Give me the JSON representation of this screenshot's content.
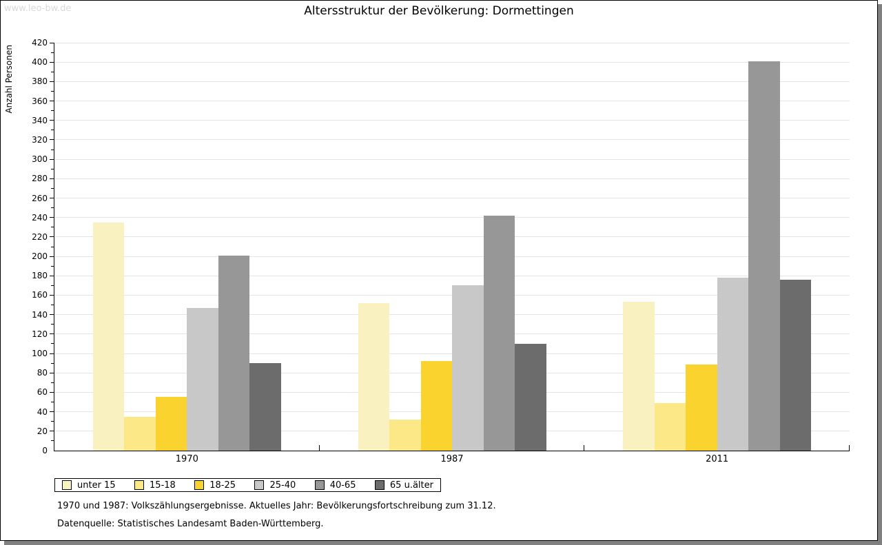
{
  "watermark": "www.leo-bw.de",
  "title": "Altersstruktur der Bevölkerung: Dormettingen",
  "chart_data": {
    "type": "bar",
    "title": "Altersstruktur der Bevölkerung: Dormettingen",
    "xlabel": "",
    "ylabel": "Anzahl Personen",
    "categories": [
      "1970",
      "1987",
      "2011"
    ],
    "series": [
      {
        "name": "unter 15",
        "color": "#FAF1C0",
        "values": [
          235,
          152,
          153
        ]
      },
      {
        "name": "15-18",
        "color": "#FCE886",
        "values": [
          35,
          32,
          49
        ]
      },
      {
        "name": "18-25",
        "color": "#FBD32F",
        "values": [
          55,
          92,
          89
        ]
      },
      {
        "name": "25-40",
        "color": "#C8C8C8",
        "values": [
          147,
          170,
          178
        ]
      },
      {
        "name": "40-65",
        "color": "#979797",
        "values": [
          201,
          242,
          401
        ]
      },
      {
        "name": "65 u.älter",
        "color": "#6C6C6C",
        "values": [
          90,
          110,
          176
        ]
      }
    ],
    "ylim": [
      0,
      420
    ],
    "ytick_major_step": 20,
    "ytick_minor_step": 10,
    "grid": true,
    "gridline_color": "#e4e4e4",
    "legend_position": "bottom"
  },
  "footer": {
    "line1": "1970 und 1987: Volkszählungsergebnisse. Aktuelles Jahr: Bevölkerungsfortschreibung zum 31.12.",
    "line2": "Datenquelle: Statistisches Landesamt Baden-Württemberg."
  }
}
